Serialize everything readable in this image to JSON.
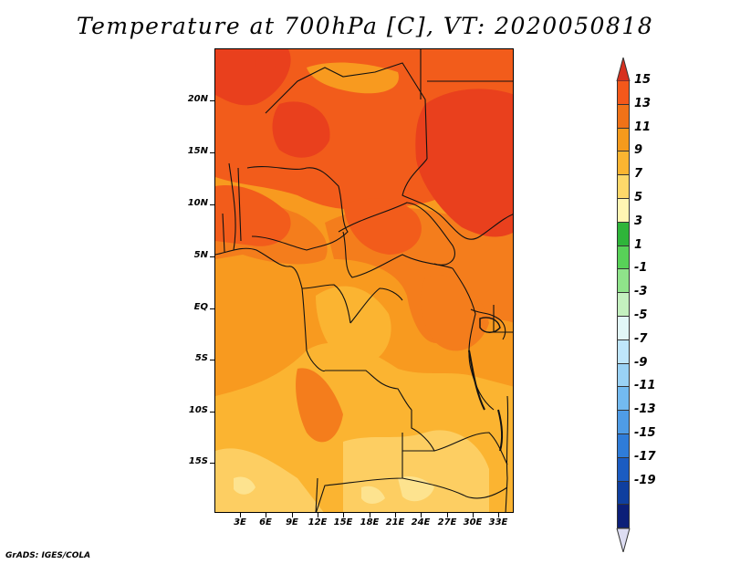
{
  "title": "Temperature at 700hPa [C], VT: 2020050818",
  "credit": "GrADS: IGES/COLA",
  "lat_labels": [
    "20N",
    "15N",
    "10N",
    "5N",
    "EQ",
    "5S",
    "10S",
    "15S"
  ],
  "lon_labels": [
    "3E",
    "6E",
    "9E",
    "12E",
    "15E",
    "18E",
    "21E",
    "24E",
    "27E",
    "30E",
    "33E"
  ],
  "colorbar": {
    "labels": [
      "15",
      "13",
      "11",
      "9",
      "7",
      "5",
      "3",
      "1",
      "-1",
      "-3",
      "-5",
      "-7",
      "-9",
      "-11",
      "-13",
      "-15",
      "-17",
      "-19"
    ],
    "colors": [
      "#d7301f",
      "#f4581a",
      "#f07218",
      "#f59a1c",
      "#fbb531",
      "#fdd86a",
      "#fff5b3",
      "#2fb53a",
      "#58d158",
      "#8fe38a",
      "#c4f0bf",
      "#e2f7f7",
      "#bfe6fb",
      "#9ad2f5",
      "#73baf0",
      "#4f9ce6",
      "#2f7cd8",
      "#1b5cc2",
      "#0f3f9f",
      "#0c1f78",
      "#ddddf2"
    ]
  },
  "map_colors": {
    "deep": "#e9401d",
    "dark": "#f25c1b",
    "mid": "#f47d1c",
    "orange": "#f89a1f",
    "light": "#fbb431",
    "pale": "#fdce62",
    "cream": "#fde38f"
  }
}
